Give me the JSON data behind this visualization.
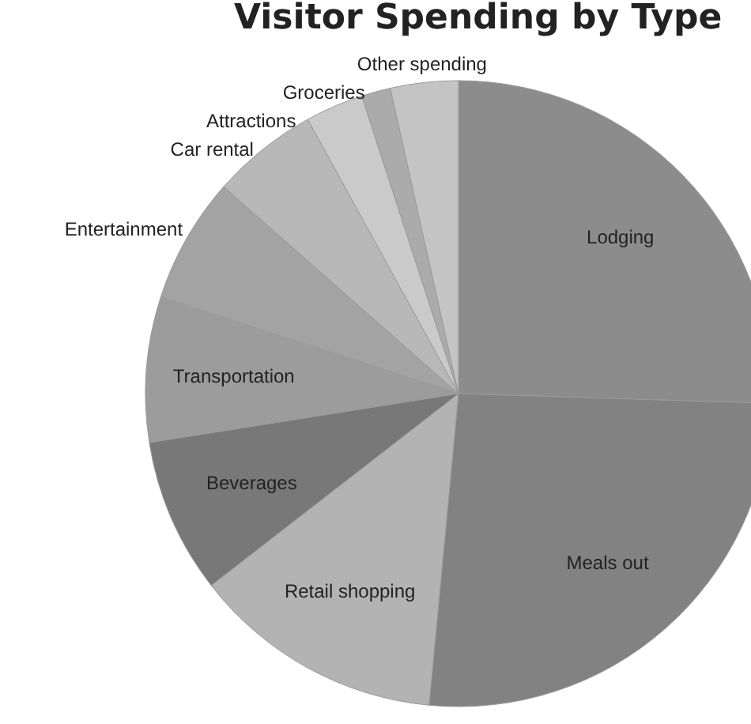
{
  "chart_data": {
    "type": "pie",
    "title": "Visitor Spending by Type",
    "categories": [
      "Lodging",
      "Meals out",
      "Retail shopping",
      "Beverages",
      "Transportation",
      "Entertainment",
      "Car rental",
      "Attractions",
      "Groceries",
      "Other spending"
    ],
    "values": [
      25.5,
      26,
      13,
      8,
      7.5,
      6.5,
      5.5,
      3,
      1.5,
      3.5
    ],
    "colors": [
      "#8c8c8c",
      "#828282",
      "#b3b3b3",
      "#787878",
      "#9c9c9c",
      "#a3a3a3",
      "#b8b8b8",
      "#cacaca",
      "#ababab",
      "#c4c4c4"
    ],
    "legend": false
  }
}
